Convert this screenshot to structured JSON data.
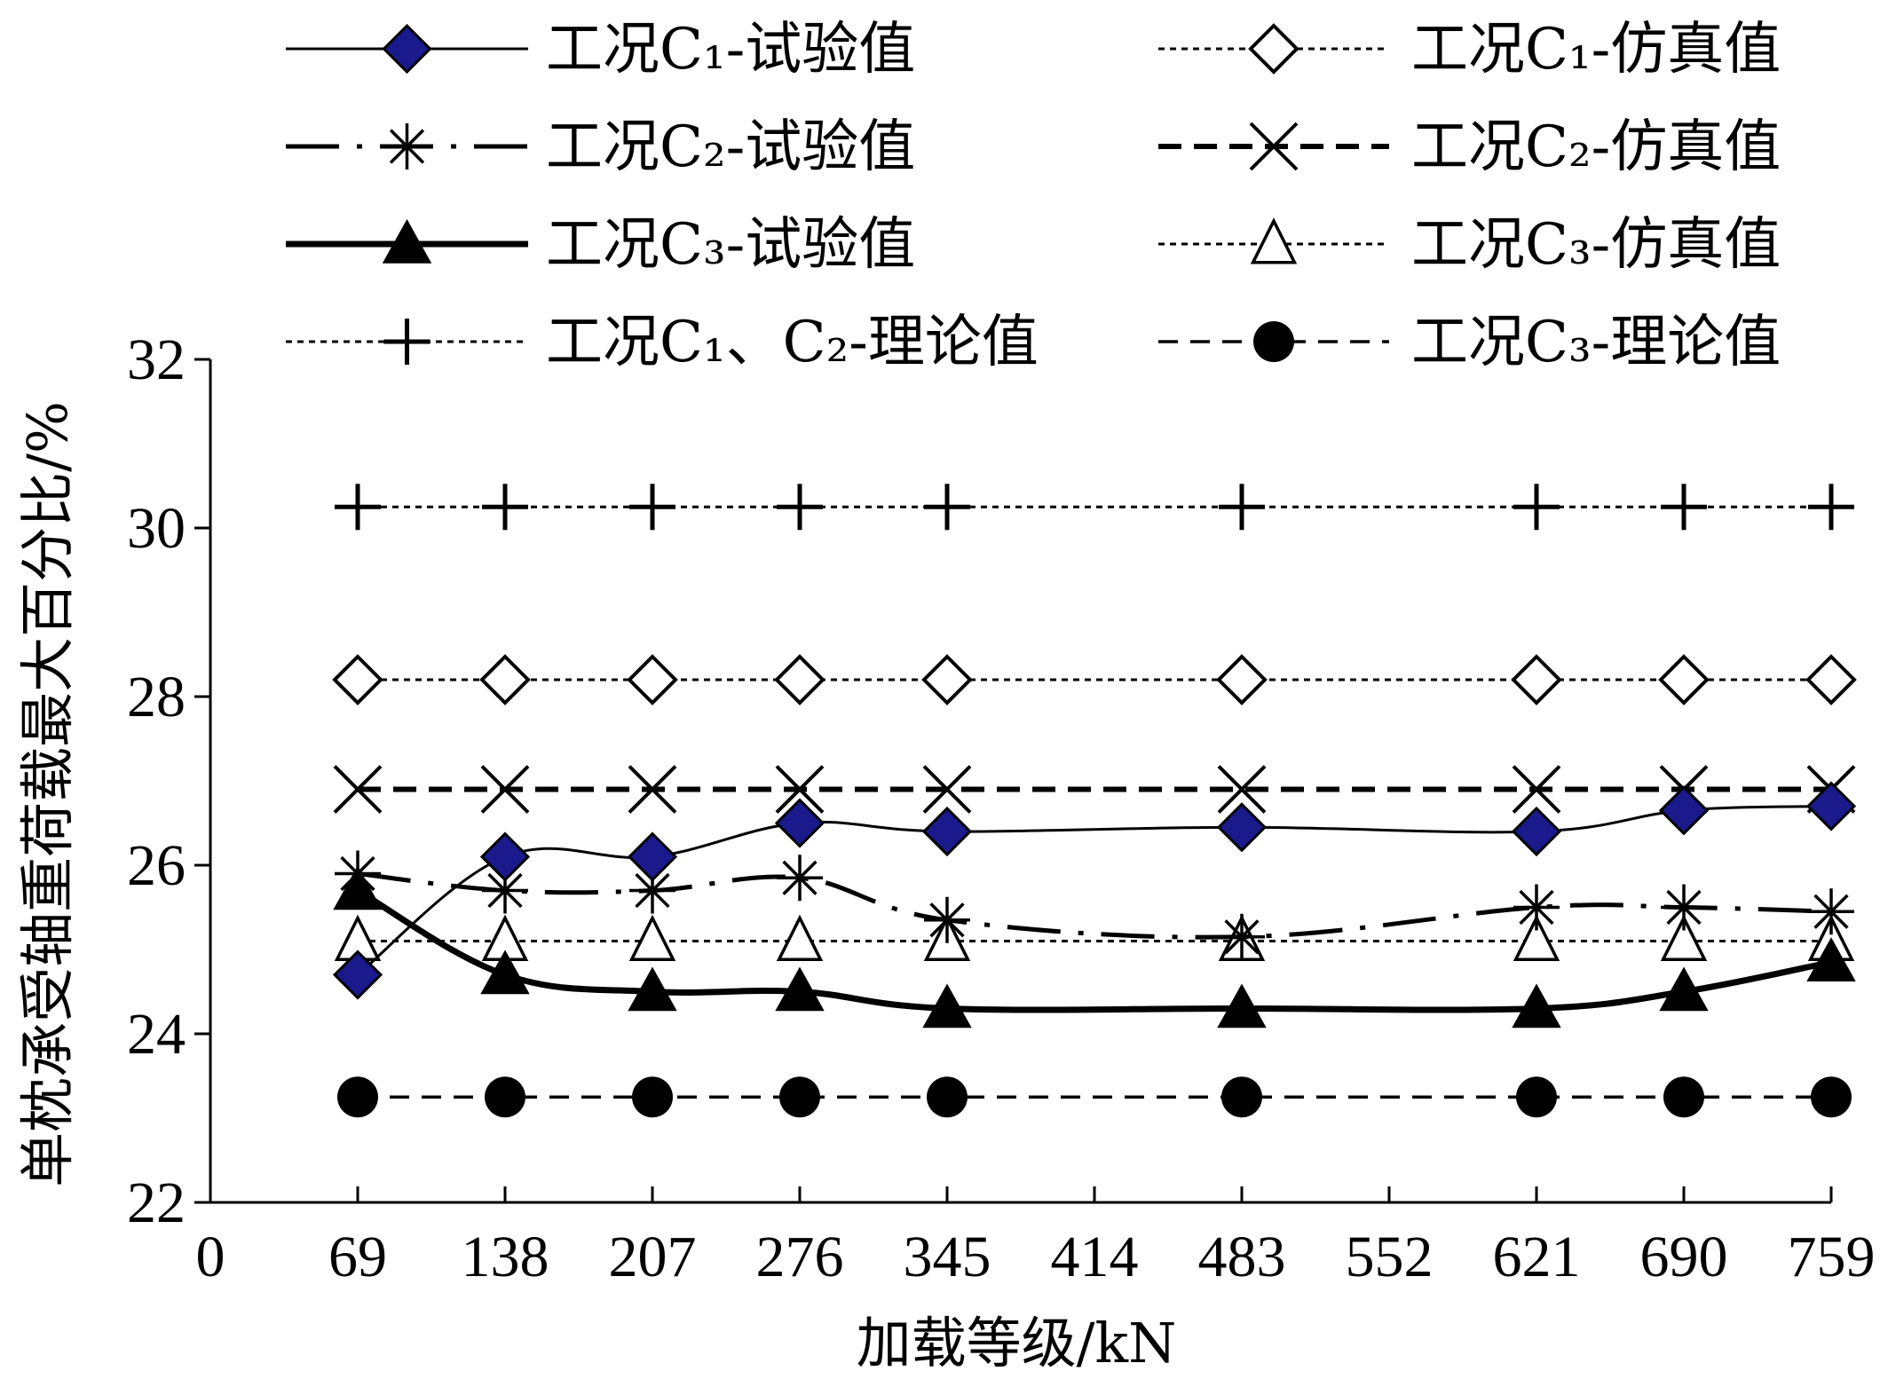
{
  "chart_data": {
    "type": "line",
    "title": "",
    "xlabel": "加载等级/kN",
    "ylabel": "单枕承受轴重荷载最大百分比/%",
    "xlim": [
      0,
      759
    ],
    "ylim": [
      22,
      32
    ],
    "x_ticks": [
      "0",
      "69",
      "138",
      "207",
      "276",
      "345",
      "414",
      "483",
      "552",
      "621",
      "690",
      "759"
    ],
    "y_ticks": [
      "22",
      "24",
      "26",
      "28",
      "30",
      "32"
    ],
    "grid": false,
    "legend_position": "top",
    "series": [
      {
        "name": "工况C₁-试验值",
        "line": "thin-solid",
        "marker": "diamond-filled",
        "x": [
          69,
          138,
          207,
          276,
          345,
          483,
          621,
          690,
          759
        ],
        "y": [
          24.7,
          26.1,
          26.1,
          26.5,
          26.4,
          26.45,
          26.4,
          26.65,
          26.7
        ]
      },
      {
        "name": "工况C₁-仿真值",
        "line": "dotted",
        "marker": "diamond-open",
        "x": [
          69,
          138,
          207,
          276,
          345,
          483,
          621,
          690,
          759
        ],
        "y": [
          28.2,
          28.2,
          28.2,
          28.2,
          28.2,
          28.2,
          28.2,
          28.2,
          28.2
        ]
      },
      {
        "name": "工况C₂-试验值",
        "line": "long-dash-dot",
        "marker": "asterisk",
        "x": [
          69,
          138,
          207,
          276,
          345,
          483,
          621,
          690,
          759
        ],
        "y": [
          25.9,
          25.7,
          25.7,
          25.85,
          25.35,
          25.15,
          25.5,
          25.5,
          25.45
        ]
      },
      {
        "name": "工况C₂-仿真值",
        "line": "dashed-bold",
        "marker": "x",
        "x": [
          69,
          138,
          207,
          276,
          345,
          483,
          621,
          690,
          759
        ],
        "y": [
          26.9,
          26.9,
          26.9,
          26.9,
          26.9,
          26.9,
          26.9,
          26.9,
          26.9
        ]
      },
      {
        "name": "工况C₃-试验值",
        "line": "thick-solid",
        "marker": "triangle-filled",
        "x": [
          69,
          138,
          207,
          276,
          345,
          483,
          621,
          690,
          759
        ],
        "y": [
          25.7,
          24.7,
          24.5,
          24.5,
          24.3,
          24.3,
          24.3,
          24.5,
          24.85
        ]
      },
      {
        "name": "工况C₃-仿真值",
        "line": "dotted",
        "marker": "triangle-open",
        "x": [
          69,
          138,
          207,
          276,
          345,
          483,
          621,
          690,
          759
        ],
        "y": [
          25.1,
          25.1,
          25.1,
          25.1,
          25.1,
          25.1,
          25.1,
          25.1,
          25.1
        ]
      },
      {
        "name": "工况C₁、C₂-理论值",
        "line": "dotted",
        "marker": "plus",
        "x": [
          69,
          138,
          207,
          276,
          345,
          483,
          621,
          690,
          759
        ],
        "y": [
          30.25,
          30.25,
          30.25,
          30.25,
          30.25,
          30.25,
          30.25,
          30.25,
          30.25
        ]
      },
      {
        "name": "工况C₃-理论值",
        "line": "dashed",
        "marker": "circle-filled",
        "x": [
          69,
          138,
          207,
          276,
          345,
          483,
          621,
          690,
          759
        ],
        "y": [
          23.25,
          23.25,
          23.25,
          23.25,
          23.25,
          23.25,
          23.25,
          23.25,
          23.25
        ]
      }
    ],
    "colors": {
      "axis": "#000000",
      "line": "#000000",
      "diamond_fill": "#1a1a8c"
    }
  }
}
